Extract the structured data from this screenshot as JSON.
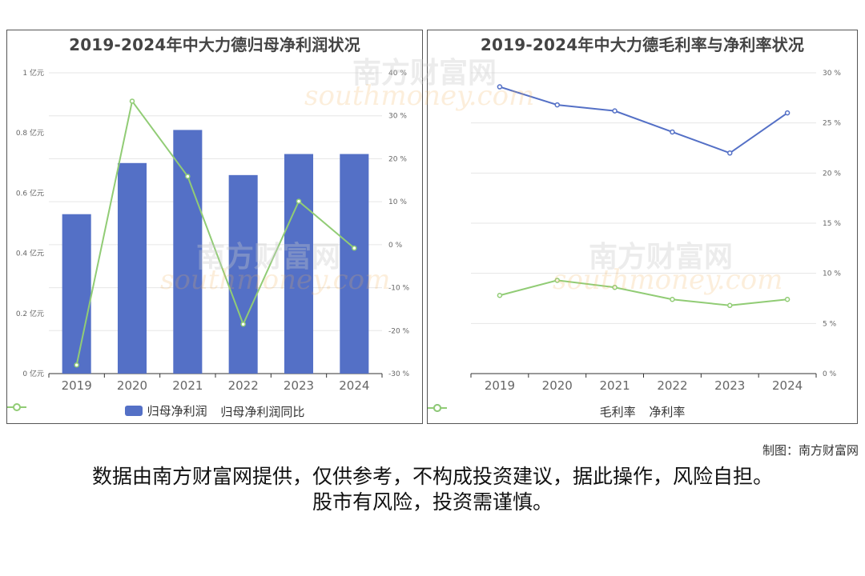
{
  "watermark": {
    "text_cn": "南方财富网",
    "text_en": "southmoney.com"
  },
  "footer": {
    "maker": "制图：南方财富网",
    "disclaimer_line1": "数据由南方财富网提供，仅供参考，不构成投资建议，据此操作，风险自担。",
    "disclaimer_line2": "股市有风险，投资需谨慎。"
  },
  "chart_data": [
    {
      "type": "bar+line",
      "title": "2019-2024年中大力德归母净利润状况",
      "categories": [
        "2019",
        "2020",
        "2021",
        "2022",
        "2023",
        "2024"
      ],
      "series": [
        {
          "name": "归母净利润",
          "type": "bar",
          "axis": "left",
          "color": "#5470c6",
          "values": [
            0.53,
            0.7,
            0.81,
            0.66,
            0.73,
            0.73
          ]
        },
        {
          "name": "归母净利润同比",
          "type": "line",
          "axis": "right",
          "color": "#91cc75",
          "values": [
            -28.0,
            33.4,
            15.9,
            -18.5,
            10.1,
            -0.8
          ]
        }
      ],
      "left_axis": {
        "min": 0,
        "max": 1,
        "ticks": [
          0,
          0.2,
          0.4,
          0.6,
          0.8,
          1
        ],
        "tick_labels": [
          "0 亿元",
          "0.2 亿元",
          "0.4 亿元",
          "0.6 亿元",
          "0.8 亿元",
          "1 亿元"
        ]
      },
      "right_axis": {
        "min": -30,
        "max": 40,
        "ticks": [
          -30,
          -20,
          -10,
          0,
          10,
          20,
          30,
          40
        ],
        "tick_labels": [
          "-30 %",
          "-20 %",
          "-10 %",
          "0 %",
          "10 %",
          "20 %",
          "30 %",
          "40 %"
        ]
      },
      "legend_position": "bottom",
      "grid": true
    },
    {
      "type": "line",
      "title": "2019-2024年中大力德毛利率与净利率状况",
      "categories": [
        "2019",
        "2020",
        "2021",
        "2022",
        "2023",
        "2024"
      ],
      "series": [
        {
          "name": "毛利率",
          "color": "#5470c6",
          "values": [
            28.6,
            26.8,
            26.2,
            24.1,
            22.0,
            26.0
          ]
        },
        {
          "name": "净利率",
          "color": "#91cc75",
          "values": [
            7.8,
            9.3,
            8.6,
            7.4,
            6.8,
            7.4
          ]
        }
      ],
      "right_axis": {
        "min": 0,
        "max": 30,
        "ticks": [
          0,
          5,
          10,
          15,
          20,
          25,
          30
        ],
        "tick_labels": [
          "0 %",
          "5 %",
          "10 %",
          "15 %",
          "20 %",
          "25 %",
          "30 %"
        ]
      },
      "legend_position": "bottom",
      "grid": true
    }
  ]
}
